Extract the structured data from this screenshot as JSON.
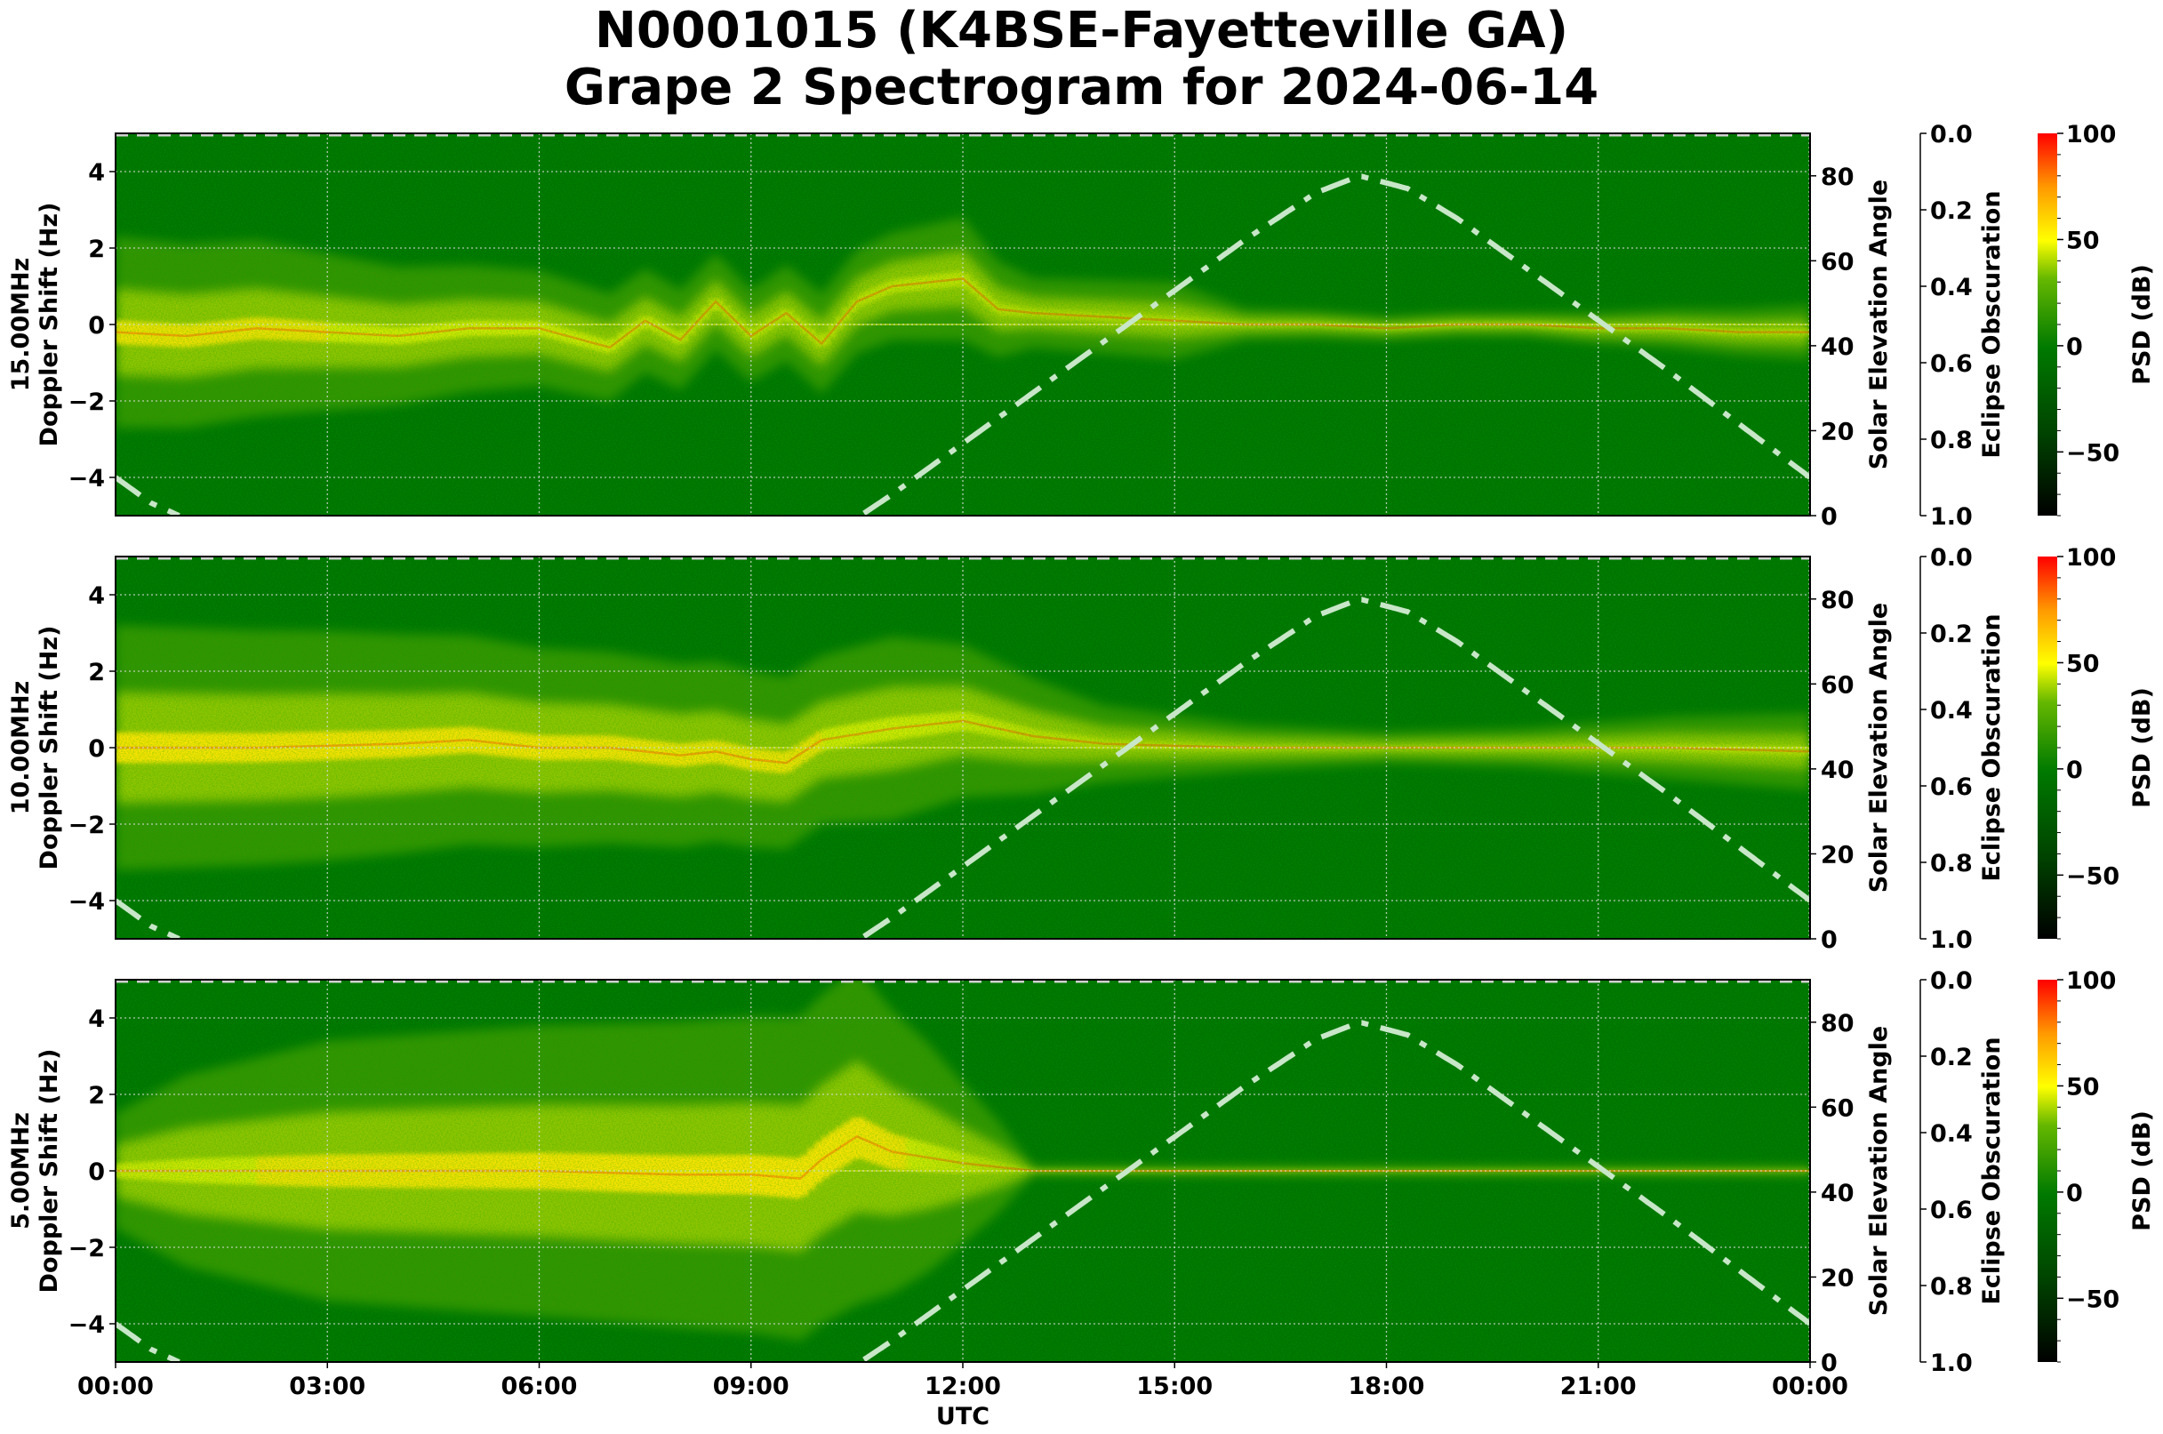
{
  "title": {
    "line1": "N0001015 (K4BSE-Fayetteville GA)",
    "line2": "Grape 2 Spectrogram for 2024-06-14"
  },
  "colors": {
    "background_green": "#007a00",
    "signal_yellow": "#e8f000",
    "signal_red": "#ff3000",
    "solar_curve": "#c8e6c8",
    "grid": "#d8d8d8"
  },
  "chart_data": {
    "type": "heatmap",
    "title": "N0001015 (K4BSE-Fayetteville GA) Grape 2 Spectrogram for 2024-06-14",
    "xlabel": "UTC",
    "x_ticks": [
      "00:00",
      "03:00",
      "06:00",
      "09:00",
      "12:00",
      "15:00",
      "18:00",
      "21:00",
      "00:00"
    ],
    "x_range_hours": [
      0,
      24
    ],
    "grid": true,
    "panels": [
      {
        "frequency": "15.00MHz",
        "ylabel": "15.00MHz\nDoppler Shift (Hz)",
        "ylabel_line1": "15.00MHz",
        "ylabel_line2": "Doppler Shift (Hz)",
        "ylim": [
          -5,
          5
        ],
        "y_ticks": [
          "4",
          "2",
          "0",
          "−2",
          "−4"
        ],
        "signal_center_hz": [
          [
            0,
            -0.2
          ],
          [
            1,
            -0.3
          ],
          [
            2,
            -0.1
          ],
          [
            3,
            -0.2
          ],
          [
            4,
            -0.3
          ],
          [
            5,
            -0.1
          ],
          [
            6,
            -0.1
          ],
          [
            7,
            -0.6
          ],
          [
            7.5,
            0.1
          ],
          [
            8,
            -0.4
          ],
          [
            8.5,
            0.6
          ],
          [
            9,
            -0.3
          ],
          [
            9.5,
            0.3
          ],
          [
            10,
            -0.5
          ],
          [
            10.5,
            0.6
          ],
          [
            11,
            1.0
          ],
          [
            11.5,
            1.1
          ],
          [
            12,
            1.2
          ],
          [
            12.5,
            0.4
          ],
          [
            13,
            0.3
          ],
          [
            14,
            0.2
          ],
          [
            15,
            0.1
          ],
          [
            16,
            0.0
          ],
          [
            17,
            0.0
          ],
          [
            18,
            -0.1
          ],
          [
            19,
            0.0
          ],
          [
            20,
            0.0
          ],
          [
            21,
            -0.1
          ],
          [
            22,
            -0.1
          ],
          [
            23,
            -0.2
          ],
          [
            24,
            -0.2
          ]
        ],
        "signal_spread_hz": [
          [
            0,
            2.5
          ],
          [
            2,
            2.3
          ],
          [
            4,
            1.8
          ],
          [
            6,
            1.5
          ],
          [
            7,
            1.4
          ],
          [
            9,
            1.2
          ],
          [
            11,
            1.4
          ],
          [
            12,
            1.6
          ],
          [
            13,
            0.9
          ],
          [
            15,
            1.0
          ],
          [
            16,
            0.4
          ],
          [
            18,
            0.3
          ],
          [
            20,
            0.3
          ],
          [
            22,
            0.5
          ],
          [
            24,
            0.7
          ]
        ],
        "signal_strength": [
          [
            0,
            0.85
          ],
          [
            3,
            0.8
          ],
          [
            6,
            0.8
          ],
          [
            7,
            0.7
          ],
          [
            9,
            0.55
          ],
          [
            11,
            0.6
          ],
          [
            12,
            0.6
          ],
          [
            13,
            0.45
          ],
          [
            15,
            0.4
          ],
          [
            17,
            0.35
          ],
          [
            20,
            0.45
          ],
          [
            24,
            0.5
          ]
        ]
      },
      {
        "frequency": "10.00MHz",
        "ylabel": "10.00MHz\nDoppler Shift (Hz)",
        "ylabel_line1": "10.00MHz",
        "ylabel_line2": "Doppler Shift (Hz)",
        "ylim": [
          -5,
          5
        ],
        "y_ticks": [
          "4",
          "2",
          "0",
          "−2",
          "−4"
        ],
        "signal_center_hz": [
          [
            0,
            0.0
          ],
          [
            2,
            0.0
          ],
          [
            4,
            0.1
          ],
          [
            5,
            0.2
          ],
          [
            6,
            0.0
          ],
          [
            7,
            0.0
          ],
          [
            8,
            -0.2
          ],
          [
            8.5,
            -0.1
          ],
          [
            9,
            -0.3
          ],
          [
            9.5,
            -0.4
          ],
          [
            10,
            0.2
          ],
          [
            11,
            0.5
          ],
          [
            12,
            0.7
          ],
          [
            12.5,
            0.5
          ],
          [
            13,
            0.3
          ],
          [
            14,
            0.1
          ],
          [
            16,
            0.0
          ],
          [
            18,
            0.0
          ],
          [
            20,
            0.0
          ],
          [
            22,
            0.0
          ],
          [
            24,
            -0.1
          ]
        ],
        "signal_spread_hz": [
          [
            0,
            3.2
          ],
          [
            3,
            3.0
          ],
          [
            6,
            2.6
          ],
          [
            8,
            2.4
          ],
          [
            10,
            2.2
          ],
          [
            11,
            2.4
          ],
          [
            12,
            2.0
          ],
          [
            13,
            1.5
          ],
          [
            14,
            1.0
          ],
          [
            16,
            0.6
          ],
          [
            18,
            0.4
          ],
          [
            20,
            0.5
          ],
          [
            22,
            0.8
          ],
          [
            24,
            1.0
          ]
        ],
        "signal_strength": [
          [
            0,
            0.95
          ],
          [
            3,
            0.9
          ],
          [
            6,
            0.9
          ],
          [
            8,
            0.85
          ],
          [
            10,
            0.8
          ],
          [
            11,
            0.8
          ],
          [
            12,
            0.7
          ],
          [
            13,
            0.55
          ],
          [
            15,
            0.4
          ],
          [
            18,
            0.3
          ],
          [
            21,
            0.4
          ],
          [
            24,
            0.45
          ]
        ]
      },
      {
        "frequency": "5.00MHz",
        "ylabel": "5.00MHz\nDoppler Shift (Hz)",
        "ylabel_line1": "5.00MHz",
        "ylabel_line2": "Doppler Shift (Hz)",
        "ylim": [
          -5,
          5
        ],
        "y_ticks": [
          "4",
          "2",
          "0",
          "−2",
          "−4"
        ],
        "signal_center_hz": [
          [
            0,
            0.0
          ],
          [
            3,
            0.0
          ],
          [
            6,
            0.0
          ],
          [
            8,
            -0.1
          ],
          [
            9,
            -0.1
          ],
          [
            9.7,
            -0.2
          ],
          [
            10,
            0.3
          ],
          [
            10.5,
            0.9
          ],
          [
            11,
            0.5
          ],
          [
            12,
            0.2
          ],
          [
            13,
            0.0
          ],
          [
            24,
            0.0
          ]
        ],
        "signal_spread_hz": [
          [
            0,
            1.5
          ],
          [
            1,
            2.5
          ],
          [
            3,
            3.4
          ],
          [
            6,
            3.8
          ],
          [
            8,
            4.0
          ],
          [
            9.5,
            4.2
          ],
          [
            10.5,
            4.4
          ],
          [
            11.5,
            3.0
          ],
          [
            12.5,
            1.2
          ],
          [
            13,
            0.1
          ],
          [
            24,
            0.1
          ]
        ],
        "signal_strength": [
          [
            0,
            0.7
          ],
          [
            2,
            0.8
          ],
          [
            4,
            0.85
          ],
          [
            6,
            0.9
          ],
          [
            8,
            0.95
          ],
          [
            10,
            0.95
          ],
          [
            11,
            0.85
          ],
          [
            12,
            0.6
          ],
          [
            13,
            0.3
          ],
          [
            24,
            0.25
          ]
        ]
      }
    ],
    "solar_elevation": {
      "label": "Solar Elevation Angle",
      "ylim": [
        0,
        90
      ],
      "y_ticks": [
        "80",
        "60",
        "40",
        "20",
        "0"
      ],
      "style": "dash-dot",
      "points": [
        [
          0,
          9
        ],
        [
          0.5,
          3
        ],
        [
          0.9,
          0
        ],
        [
          10.55,
          0
        ],
        [
          11,
          5
        ],
        [
          12,
          17
        ],
        [
          13,
          29
        ],
        [
          14,
          41
        ],
        [
          15,
          53
        ],
        [
          16,
          65
        ],
        [
          17,
          76
        ],
        [
          17.62,
          80
        ],
        [
          18.3,
          77
        ],
        [
          19,
          70
        ],
        [
          20,
          58
        ],
        [
          21,
          46
        ],
        [
          22,
          34
        ],
        [
          23,
          21.5
        ],
        [
          24,
          9
        ]
      ]
    },
    "eclipse_obscuration": {
      "label": "Eclipse Obscuration",
      "ylim": [
        1.0,
        0.0
      ],
      "y_ticks": [
        "0.0",
        "0.2",
        "0.4",
        "0.6",
        "0.8",
        "1.0"
      ],
      "value": 0.0,
      "style": "dashed"
    },
    "colorbar": {
      "label": "PSD (dB)",
      "range": [
        -80,
        100
      ],
      "ticks": [
        "100",
        "50",
        "0",
        "−50"
      ],
      "colormap": [
        "#000000",
        "#004400",
        "#007a00",
        "#66b800",
        "#ffff00",
        "#ff9900",
        "#ff0000"
      ]
    }
  }
}
